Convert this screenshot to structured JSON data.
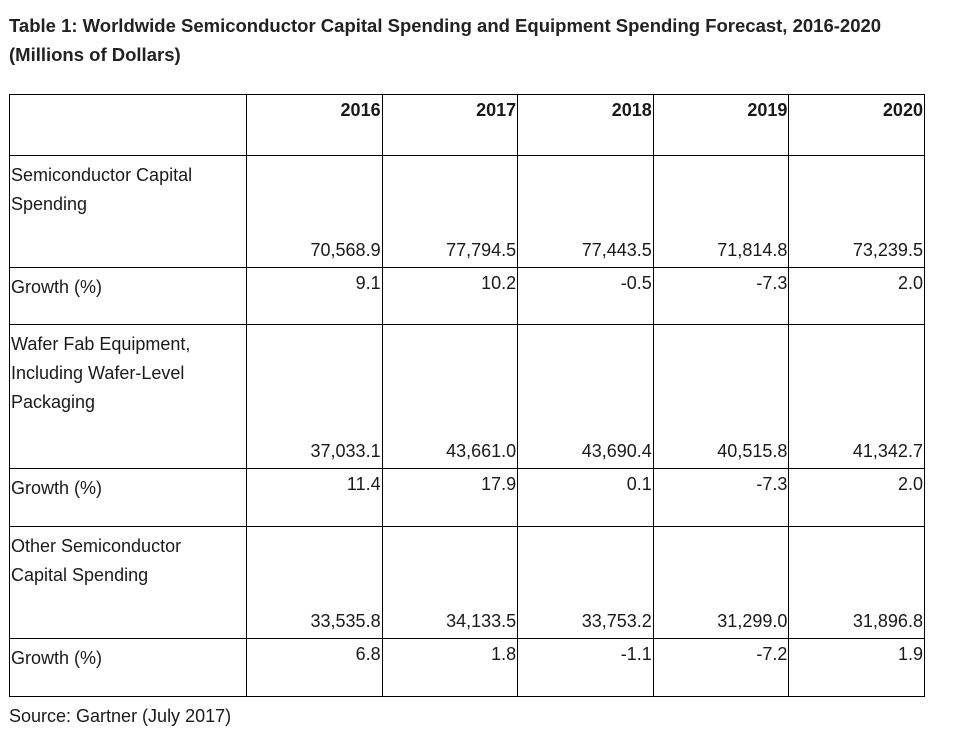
{
  "title": "Table 1: Worldwide Semiconductor Capital Spending and Equipment Spending Forecast, 2016-2020 (Millions of Dollars)",
  "source": "Source: Gartner (July 2017)",
  "chart_data": {
    "type": "table",
    "title": "Table 1: Worldwide Semiconductor Capital Spending and Equipment Spending Forecast, 2016-2020 (Millions of Dollars)",
    "columns": [
      "2016",
      "2017",
      "2018",
      "2019",
      "2020"
    ],
    "rows": [
      {
        "label": "Semiconductor Capital Spending",
        "values": [
          "70,568.9",
          "77,794.5",
          "77,443.5",
          "71,814.8",
          "73,239.5"
        ]
      },
      {
        "label": "Growth (%)",
        "values": [
          "9.1",
          "10.2",
          "-0.5",
          "-7.3",
          "2.0"
        ]
      },
      {
        "label": "Wafer Fab Equipment, Including Wafer-Level Packaging",
        "values": [
          "37,033.1",
          "43,661.0",
          "43,690.4",
          "40,515.8",
          "41,342.7"
        ]
      },
      {
        "label": "Growth (%)",
        "values": [
          "11.4",
          "17.9",
          "0.1",
          "-7.3",
          "2.0"
        ]
      },
      {
        "label": "Other Semiconductor Capital Spending",
        "values": [
          "33,535.8",
          "34,133.5",
          "33,753.2",
          "31,299.0",
          "31,896.8"
        ]
      },
      {
        "label": "Growth (%)",
        "values": [
          "6.8",
          "1.8",
          "-1.1",
          "-7.2",
          "1.9"
        ]
      }
    ]
  }
}
